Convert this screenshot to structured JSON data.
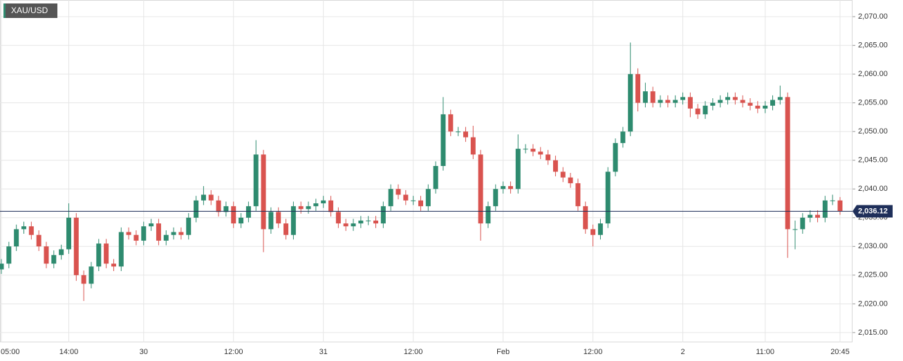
{
  "chart_data": {
    "type": "candlestick",
    "title": "XAU/USD",
    "categories": [
      "05:00",
      null,
      null,
      null,
      null,
      null,
      null,
      null,
      null,
      "14:00",
      null,
      null,
      null,
      null,
      null,
      null,
      null,
      null,
      null,
      "30",
      null,
      null,
      null,
      null,
      null,
      null,
      null,
      null,
      null,
      null,
      null,
      "12:00",
      null,
      null,
      null,
      null,
      null,
      null,
      null,
      null,
      null,
      null,
      null,
      "31",
      null,
      null,
      null,
      null,
      null,
      null,
      null,
      null,
      null,
      null,
      null,
      "12:00",
      null,
      null,
      null,
      null,
      null,
      null,
      null,
      null,
      null,
      null,
      null,
      "Feb",
      null,
      null,
      null,
      null,
      null,
      null,
      null,
      null,
      null,
      null,
      null,
      "12:00",
      null,
      null,
      null,
      null,
      null,
      null,
      null,
      null,
      null,
      null,
      null,
      "2",
      null,
      null,
      null,
      null,
      null,
      null,
      null,
      null,
      null,
      null,
      "11:00",
      null,
      null,
      null,
      null,
      null,
      null,
      null,
      null,
      null,
      "20:45"
    ],
    "open": [
      2026,
      2027,
      2030,
      2033,
      2033.5,
      2032,
      2030,
      2027,
      2028.5,
      2029.5,
      2035,
      2025,
      2023.5,
      2026.5,
      2030.5,
      2027,
      2026.5,
      2032.5,
      2032,
      2031,
      2033.5,
      2034,
      2031,
      2032,
      2032.5,
      2032,
      2035,
      2038,
      2039,
      2038,
      2036,
      2037,
      2034,
      2035,
      2037,
      2046,
      2033,
      2036,
      2034,
      2032,
      2037,
      2036.5,
      2037,
      2037.5,
      2038,
      2036,
      2034,
      2033.5,
      2034,
      2034.5,
      2034.5,
      2034,
      2037,
      2040,
      2039,
      2038,
      2038,
      2037,
      2040,
      2044,
      2053,
      2050,
      2050,
      2049,
      2046,
      2034,
      2037,
      2040,
      2040.5,
      2040,
      2047,
      2047,
      2046.5,
      2046,
      2045,
      2043,
      2042,
      2041,
      2037,
      2033,
      2032,
      2034,
      2043,
      2048,
      2050,
      2060,
      2055,
      2057,
      2055,
      2055.5,
      2055,
      2055.5,
      2056,
      2054,
      2053,
      2054.5,
      2055,
      2055.5,
      2056,
      2055.5,
      2055,
      2054.5,
      2054,
      2054.5,
      2055.5,
      2056,
      2033,
      2033,
      2035,
      2035.5,
      2035,
      2038,
      2038
    ],
    "high": [
      2027.8,
      2030.8,
      2033.8,
      2034.3,
      2034.3,
      2032.8,
      2030.8,
      2029.3,
      2030.3,
      2037.5,
      2035.8,
      2025.8,
      2027.3,
      2031.3,
      2031.3,
      2027.8,
      2033.3,
      2033.3,
      2032.8,
      2034.3,
      2034.8,
      2034.8,
      2032.8,
      2033.3,
      2033.3,
      2035.8,
      2038.8,
      2040.5,
      2039.8,
      2038.8,
      2037.8,
      2037.8,
      2035.8,
      2037.8,
      2048.5,
      2046.8,
      2036.8,
      2036.8,
      2034.8,
      2037.8,
      2037.8,
      2037.8,
      2038.3,
      2038.8,
      2038.8,
      2036.8,
      2034.8,
      2034.8,
      2035.3,
      2035.3,
      2035.3,
      2037.8,
      2040.8,
      2040.8,
      2039.8,
      2038.8,
      2038.8,
      2040.8,
      2044.8,
      2056,
      2053.8,
      2050.8,
      2050.8,
      2051,
      2046.8,
      2037.8,
      2040.8,
      2041.3,
      2041.3,
      2049.5,
      2047.8,
      2047.8,
      2047.3,
      2046.8,
      2045.8,
      2043.8,
      2042.8,
      2041.8,
      2037.8,
      2033.8,
      2034.8,
      2043.8,
      2048.8,
      2050.8,
      2065.5,
      2061,
      2058.5,
      2057.8,
      2056.3,
      2056.3,
      2056.3,
      2056.8,
      2056.8,
      2054.8,
      2055.3,
      2055.8,
      2056.3,
      2056.8,
      2056.8,
      2056.3,
      2055.8,
      2055.3,
      2055.3,
      2056.3,
      2058,
      2056.8,
      2034.5,
      2035.8,
      2036.3,
      2036.3,
      2038.8,
      2039,
      2038.6
    ],
    "low": [
      2025.2,
      2026.2,
      2029.2,
      2032.2,
      2031.2,
      2029.2,
      2026.2,
      2026.2,
      2027.7,
      2028.7,
      2024,
      2020.5,
      2022.7,
      2025.7,
      2026.2,
      2025.7,
      2025.7,
      2031.2,
      2030.2,
      2030.2,
      2032.7,
      2030.2,
      2030.2,
      2031.2,
      2031.2,
      2031.2,
      2034.2,
      2037.2,
      2037.2,
      2035.2,
      2035.2,
      2033.2,
      2033.2,
      2034.2,
      2036.2,
      2029,
      2032.2,
      2033.2,
      2031.2,
      2031.2,
      2035.7,
      2035.7,
      2036.2,
      2036.7,
      2035.2,
      2033.2,
      2032.7,
      2032.7,
      2033.2,
      2033.7,
      2033.2,
      2033.2,
      2036.2,
      2038.2,
      2037.2,
      2037.2,
      2036.2,
      2036.2,
      2039.2,
      2043.2,
      2049.2,
      2049.2,
      2048.2,
      2045.2,
      2031,
      2033.2,
      2036.2,
      2039.2,
      2039.2,
      2039.2,
      2046.2,
      2045.7,
      2045.2,
      2044.2,
      2042.2,
      2041.2,
      2040.2,
      2036.2,
      2032.2,
      2030,
      2031.2,
      2033.2,
      2042.2,
      2047.2,
      2049.2,
      2053.5,
      2054.2,
      2054.2,
      2054.2,
      2054.2,
      2054.2,
      2054.7,
      2052.5,
      2052.2,
      2052.2,
      2053.7,
      2054.2,
      2054.7,
      2054.7,
      2054.2,
      2053.7,
      2053.2,
      2053.2,
      2053.7,
      2054.7,
      2028,
      2029.5,
      2032.2,
      2034.2,
      2034.2,
      2034.2,
      2037.2,
      2035.5
    ],
    "close": [
      2027,
      2030,
      2033,
      2033.5,
      2032,
      2030,
      2027,
      2028.5,
      2029.5,
      2035,
      2025,
      2023.5,
      2026.5,
      2030.5,
      2027,
      2026.5,
      2032.5,
      2032,
      2031,
      2033.5,
      2034,
      2031,
      2032,
      2032.5,
      2032,
      2035,
      2038,
      2039,
      2038,
      2036,
      2037,
      2034,
      2035,
      2037,
      2046,
      2033,
      2036,
      2034,
      2032,
      2037,
      2036.5,
      2037,
      2037.5,
      2038,
      2036,
      2034,
      2033.5,
      2034,
      2034.5,
      2034.5,
      2034,
      2037,
      2040,
      2039,
      2038,
      2038,
      2037,
      2040,
      2044,
      2053,
      2050,
      2050,
      2049,
      2046,
      2034,
      2037,
      2040,
      2040.5,
      2040,
      2047,
      2047,
      2046.5,
      2046,
      2045,
      2043,
      2042,
      2041,
      2037,
      2033,
      2032,
      2034,
      2043,
      2048,
      2050,
      2060,
      2055,
      2057,
      2055,
      2055.5,
      2055,
      2055.5,
      2056,
      2054,
      2053,
      2054.5,
      2055,
      2055.5,
      2056,
      2055.5,
      2055,
      2054.5,
      2054,
      2054.5,
      2055.5,
      2056,
      2033,
      2033,
      2035,
      2035.5,
      2035,
      2038,
      2038,
      2036.12
    ],
    "last_label": "2,036.12",
    "up_color": "#2e8b6f",
    "down_color": "#d9534f",
    "last_color": "#1f2f5a",
    "ylim": [
      2013.3,
      2072.9
    ],
    "yticks": [
      {
        "value": 2015,
        "label": "2,015.00"
      },
      {
        "value": 2020,
        "label": "2,020.00"
      },
      {
        "value": 2025,
        "label": "2,025.00"
      },
      {
        "value": 2030,
        "label": "2,030.00"
      },
      {
        "value": 2035,
        "label": "2,035.00"
      },
      {
        "value": 2040,
        "label": "2,040.00"
      },
      {
        "value": 2045,
        "label": "2,045.00"
      },
      {
        "value": 2050,
        "label": "2,050.00"
      },
      {
        "value": 2055,
        "label": "2,055.00"
      },
      {
        "value": 2060,
        "label": "2,060.00"
      },
      {
        "value": 2065,
        "label": "2,065.00"
      },
      {
        "value": 2070,
        "label": "2,070.00"
      }
    ],
    "grid": true
  }
}
